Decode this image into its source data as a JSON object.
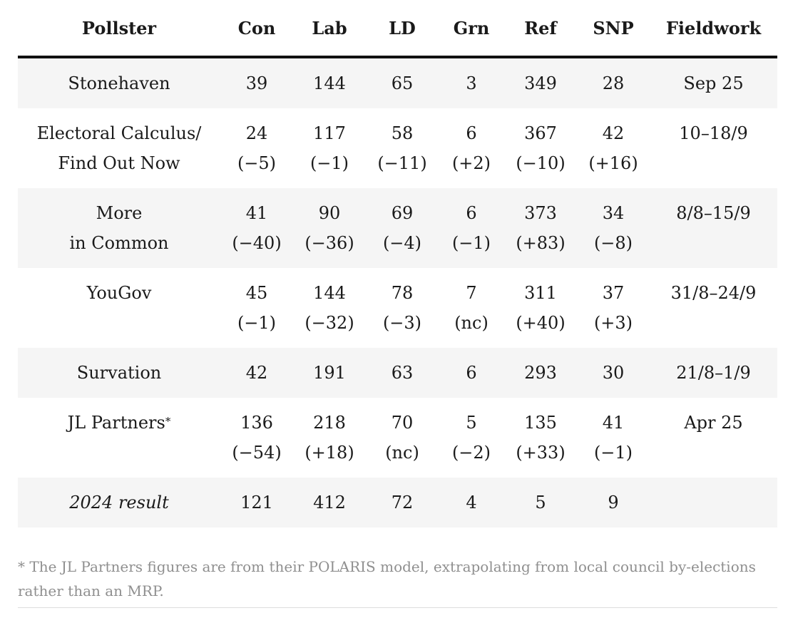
{
  "table": {
    "headers": [
      "Pollster",
      "Con",
      "Lab",
      "LD",
      "Grn",
      "Ref",
      "SNP",
      "Fieldwork"
    ],
    "rows": [
      {
        "pollster": [
          "Stonehaven"
        ],
        "con": [
          "39"
        ],
        "lab": [
          "144"
        ],
        "ld": [
          "65"
        ],
        "grn": [
          "3"
        ],
        "ref": [
          "349"
        ],
        "snp": [
          "28"
        ],
        "fieldwork": "Sep 25"
      },
      {
        "pollster": [
          "Electoral Calculus/",
          "Find Out Now"
        ],
        "con": [
          "24",
          "(−5)"
        ],
        "lab": [
          "117",
          "(−1)"
        ],
        "ld": [
          "58",
          "(−11)"
        ],
        "grn": [
          "6",
          "(+2)"
        ],
        "ref": [
          "367",
          "(−10)"
        ],
        "snp": [
          "42",
          "(+16)"
        ],
        "fieldwork": "10–18/9"
      },
      {
        "pollster": [
          "More",
          "in Common"
        ],
        "con": [
          "41",
          "(−40)"
        ],
        "lab": [
          "90",
          "(−36)"
        ],
        "ld": [
          "69",
          "(−4)"
        ],
        "grn": [
          "6",
          "(−1)"
        ],
        "ref": [
          "373",
          "(+83)"
        ],
        "snp": [
          "34",
          "(−8)"
        ],
        "fieldwork": "8/8–15/9"
      },
      {
        "pollster": [
          "YouGov"
        ],
        "con": [
          "45",
          "(−1)"
        ],
        "lab": [
          "144",
          "(−32)"
        ],
        "ld": [
          "78",
          "(−3)"
        ],
        "grn": [
          "7",
          "(nc)"
        ],
        "ref": [
          "311",
          "(+40)"
        ],
        "snp": [
          "37",
          "(+3)"
        ],
        "fieldwork": "31/8–24/9"
      },
      {
        "pollster": [
          "Survation"
        ],
        "con": [
          "42"
        ],
        "lab": [
          "191"
        ],
        "ld": [
          "63"
        ],
        "grn": [
          "6"
        ],
        "ref": [
          "293"
        ],
        "snp": [
          "30"
        ],
        "fieldwork": "21/8–1/9"
      },
      {
        "pollster": [
          "JL Partners"
        ],
        "pollster_mark": "*",
        "con": [
          "136",
          "(−54)"
        ],
        "lab": [
          "218",
          "(+18)"
        ],
        "ld": [
          "70",
          "(nc)"
        ],
        "grn": [
          "5",
          "(−2)"
        ],
        "ref": [
          "135",
          "(+33)"
        ],
        "snp": [
          "41",
          "(−1)"
        ],
        "fieldwork": "Apr 25"
      },
      {
        "pollster": [
          "2024 result"
        ],
        "con": [
          "121"
        ],
        "lab": [
          "412"
        ],
        "ld": [
          "72"
        ],
        "grn": [
          "4"
        ],
        "ref": [
          "5"
        ],
        "snp": [
          "9"
        ],
        "fieldwork": ""
      }
    ]
  },
  "footnote": "* The JL Partners figures are from their POLARIS model, extrapolating from local council by-elections rather than an MRP."
}
